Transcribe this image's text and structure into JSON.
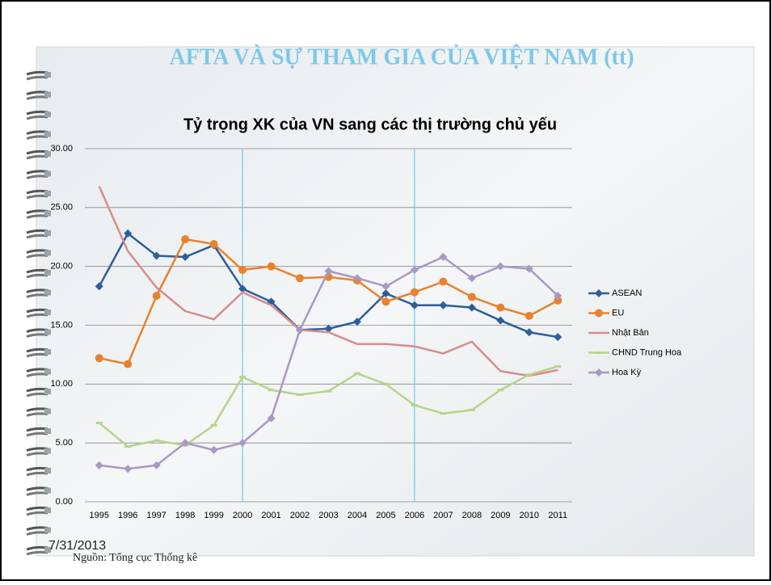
{
  "slide": {
    "title": "AFTA VÀ SỰ THAM GIA CỦA VIỆT NAM (tt)",
    "date": "7/31/2013",
    "source": "Nguồn: Tổng cục Thống kê"
  },
  "chart_data": {
    "type": "line",
    "title": "Tỷ trọng XK của VN sang các thị trường chủ yếu",
    "categories": [
      "1995",
      "1996",
      "1997",
      "1998",
      "1999",
      "2000",
      "2001",
      "2002",
      "2003",
      "2004",
      "2005",
      "2006",
      "2007",
      "2008",
      "2009",
      "2010",
      "2011"
    ],
    "series": [
      {
        "name": "ASEAN",
        "color": "#2e5d9a",
        "marker": "diamond",
        "values": [
          18.3,
          22.8,
          20.9,
          20.8,
          21.8,
          18.1,
          17.0,
          14.6,
          14.7,
          15.3,
          17.7,
          16.7,
          16.7,
          16.5,
          15.4,
          14.4,
          14.0
        ]
      },
      {
        "name": "EU",
        "color": "#e8822e",
        "marker": "circle",
        "values": [
          12.2,
          11.7,
          17.5,
          22.3,
          21.9,
          19.7,
          20.0,
          19.0,
          19.1,
          18.8,
          17.0,
          17.8,
          18.7,
          17.4,
          16.5,
          15.8,
          17.1
        ]
      },
      {
        "name": "Nhật Bản",
        "color": "#d98b8b",
        "marker": "none",
        "values": [
          26.8,
          21.3,
          18.2,
          16.2,
          15.5,
          17.8,
          16.7,
          14.6,
          14.4,
          13.4,
          13.4,
          13.2,
          12.6,
          13.6,
          11.1,
          10.7,
          11.2
        ]
      },
      {
        "name": "CHND Trung Hoa",
        "color": "#b7d48a",
        "marker": "dash",
        "values": [
          6.7,
          4.7,
          5.2,
          4.8,
          6.5,
          10.6,
          9.5,
          9.1,
          9.4,
          10.9,
          10.0,
          8.2,
          7.5,
          7.8,
          9.5,
          10.8,
          11.5
        ]
      },
      {
        "name": "Hoa Kỳ",
        "color": "#a899c4",
        "marker": "diamond",
        "values": [
          3.1,
          2.8,
          3.1,
          5.0,
          4.4,
          5.0,
          7.1,
          14.6,
          19.6,
          19.0,
          18.3,
          19.7,
          20.8,
          19.0,
          20.0,
          19.8,
          17.5
        ]
      }
    ],
    "ylim": [
      0,
      30
    ],
    "yticks": [
      {
        "value": 0,
        "label": "0.00"
      },
      {
        "value": 5,
        "label": "5.00"
      },
      {
        "value": 10,
        "label": "10.00"
      },
      {
        "value": 15,
        "label": "15.00"
      },
      {
        "value": 20,
        "label": "20.00"
      },
      {
        "value": 25,
        "label": "25.00"
      },
      {
        "value": 30,
        "label": "30.00"
      }
    ],
    "grid": true,
    "legend": "right"
  }
}
